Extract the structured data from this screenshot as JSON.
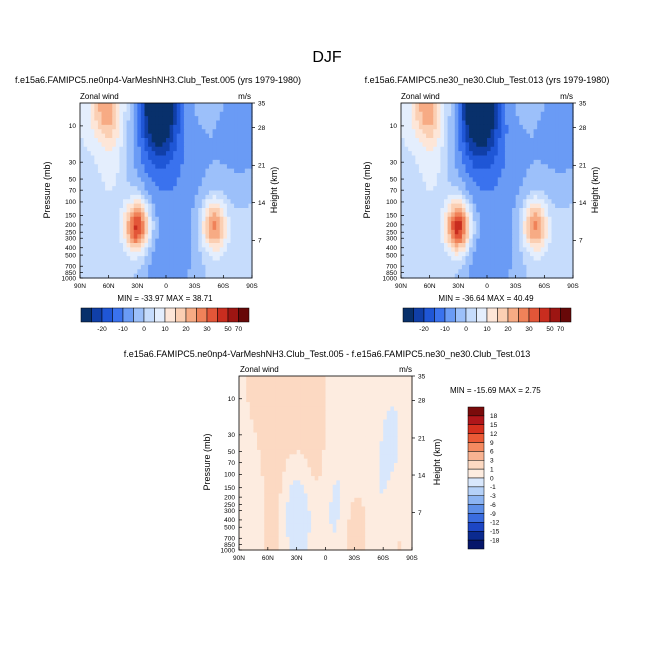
{
  "figure": {
    "title": "DJF"
  },
  "chart_data": [
    {
      "type": "heatmap",
      "id": "left",
      "title": "f.e15a6.FAMIPC5.ne0np4-VarMeshNH3.Club_Test.005 (yrs 1979-1980)",
      "field_label": "Zonal wind",
      "units_label": "m/s",
      "xlabel": "",
      "ylabel": "Pressure (mb)",
      "ylabel_right": "Height (km)",
      "x_ticks": [
        "90N",
        "60N",
        "30N",
        "0",
        "30S",
        "60S",
        "90S"
      ],
      "y_ticks": [
        "10",
        "30",
        "50",
        "70",
        "100",
        "150",
        "200",
        "250",
        "300",
        "400",
        "500",
        "700",
        "850",
        "1000"
      ],
      "y_ticks_right": [
        "35",
        "28",
        "21",
        "14",
        "7"
      ],
      "stats": "MIN = -33.97   MAX = 38.71",
      "colorbar_levels": [
        "-20",
        "-10",
        "0",
        "10",
        "20",
        "30",
        "50",
        "70"
      ],
      "features": [
        {
          "kind": "max",
          "lat": 30,
          "p": 200,
          "value": 38.71
        },
        {
          "kind": "max",
          "lat": -50,
          "p": 200,
          "value": 28
        },
        {
          "kind": "max",
          "lat": 60,
          "p": 5,
          "value": 20
        },
        {
          "kind": "min",
          "lat": 10,
          "p": 5,
          "value": -33.97
        }
      ]
    },
    {
      "type": "heatmap",
      "id": "right",
      "title": "f.e15a6.FAMIPC5.ne30_ne30.Club_Test.013 (yrs 1979-1980)",
      "field_label": "Zonal wind",
      "units_label": "m/s",
      "xlabel": "",
      "ylabel": "Pressure (mb)",
      "ylabel_right": "Height (km)",
      "x_ticks": [
        "90N",
        "60N",
        "30N",
        "0",
        "30S",
        "60S",
        "90S"
      ],
      "y_ticks": [
        "10",
        "30",
        "50",
        "70",
        "100",
        "150",
        "200",
        "250",
        "300",
        "400",
        "500",
        "700",
        "850",
        "1000"
      ],
      "y_ticks_right": [
        "35",
        "28",
        "21",
        "14",
        "7"
      ],
      "stats": "MIN = -36.64   MAX = 40.49",
      "colorbar_levels": [
        "-20",
        "-10",
        "0",
        "10",
        "20",
        "30",
        "50",
        "70"
      ],
      "features": [
        {
          "kind": "max",
          "lat": 30,
          "p": 200,
          "value": 40.49
        },
        {
          "kind": "max",
          "lat": -50,
          "p": 200,
          "value": 28
        },
        {
          "kind": "max",
          "lat": 60,
          "p": 5,
          "value": 20
        },
        {
          "kind": "min",
          "lat": 10,
          "p": 5,
          "value": -36.64
        }
      ]
    },
    {
      "type": "heatmap",
      "id": "diff",
      "title": "f.e15a6.FAMIPC5.ne0np4-VarMeshNH3.Club_Test.005 - f.e15a6.FAMIPC5.ne30_ne30.Club_Test.013",
      "field_label": "Zonal wind",
      "units_label": "m/s",
      "xlabel": "",
      "ylabel": "Pressure (mb)",
      "ylabel_right": "Height (km)",
      "x_ticks": [
        "90N",
        "60N",
        "30N",
        "0",
        "30S",
        "60S",
        "90S"
      ],
      "y_ticks": [
        "10",
        "30",
        "50",
        "70",
        "100",
        "150",
        "200",
        "250",
        "300",
        "400",
        "500",
        "700",
        "850",
        "1000"
      ],
      "y_ticks_right": [
        "35",
        "28",
        "21",
        "14",
        "7"
      ],
      "stats": "MIN = -15.69   MAX =   2.75",
      "colorbar_levels": [
        "18",
        "15",
        "12",
        "9",
        "6",
        "3",
        "1",
        "0",
        "-1",
        "-3",
        "-6",
        "-9",
        "-12",
        "-15",
        "-18"
      ]
    }
  ],
  "colors": {
    "main_palette": [
      "#08306b",
      "#103fa8",
      "#1f56d6",
      "#3a72ee",
      "#6a9bf5",
      "#9cc0fa",
      "#c6dcfc",
      "#e4eefd",
      "#fde6d8",
      "#fbcfb3",
      "#f7ab84",
      "#f08259",
      "#e35638",
      "#c92d1f",
      "#9d1512",
      "#670808"
    ],
    "diff_palette": [
      "#7a0b0b",
      "#b0161a",
      "#d6301e",
      "#eb5a36",
      "#f48a60",
      "#f8b392",
      "#fcd9c2",
      "#fdece0",
      "#d8e7fc",
      "#b5d1f8",
      "#8cb4f2",
      "#5e8fe8",
      "#3a6cdf",
      "#1d46c4",
      "#0b2a8f",
      "#06166a"
    ]
  }
}
